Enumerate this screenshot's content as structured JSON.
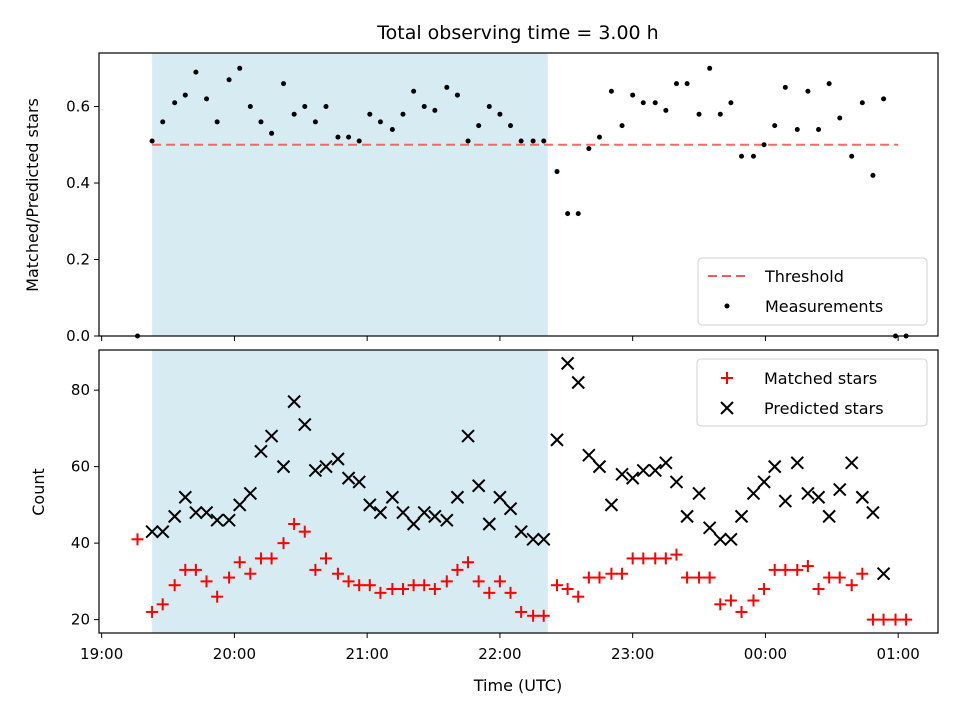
{
  "title": "Total observing time = 3.00 h",
  "colors": {
    "shade": "#add8e6",
    "threshold": "#ff5555",
    "matched": "#ff0000",
    "predicted": "#000000",
    "points": "#000000"
  },
  "chart_data": [
    {
      "type": "scatter",
      "position": "top",
      "ylabel": "Matched/Predicted stars",
      "xlabel": "",
      "ylim": [
        0,
        0.74
      ],
      "yticks": [
        "0.0",
        "0.2",
        "0.4",
        "0.6"
      ],
      "ytick_values": [
        0,
        0.2,
        0.4,
        0.6
      ],
      "shaded_region": {
        "start_hour": 19.38,
        "end_hour": 22.36
      },
      "threshold": 0.5,
      "legend": {
        "placement": "lower right",
        "items": [
          "Threshold",
          "Measurements"
        ]
      },
      "series": [
        {
          "name": "Measurements",
          "x_hours": [
            19.27,
            19.38,
            19.46,
            19.55,
            19.63,
            19.71,
            19.79,
            19.87,
            19.96,
            20.04,
            20.12,
            20.2,
            20.28,
            20.37,
            20.45,
            20.53,
            20.61,
            20.69,
            20.78,
            20.86,
            20.94,
            21.02,
            21.1,
            21.19,
            21.27,
            21.35,
            21.43,
            21.51,
            21.6,
            21.68,
            21.76,
            21.84,
            21.92,
            22.0,
            22.08,
            22.16,
            22.25,
            22.33,
            22.43,
            22.51,
            22.59,
            22.67,
            22.75,
            22.84,
            22.92,
            23.0,
            23.08,
            23.17,
            23.25,
            23.33,
            23.41,
            23.5,
            23.58,
            23.66,
            23.74,
            23.82,
            23.91,
            23.99,
            24.07,
            24.15,
            24.24,
            24.32,
            24.4,
            24.48,
            24.56,
            24.65,
            24.73,
            24.81,
            24.89,
            24.98,
            25.06
          ],
          "values": [
            0.0,
            0.51,
            0.56,
            0.61,
            0.63,
            0.69,
            0.62,
            0.56,
            0.67,
            0.7,
            0.6,
            0.56,
            0.53,
            0.66,
            0.58,
            0.6,
            0.56,
            0.6,
            0.52,
            0.52,
            0.51,
            0.58,
            0.56,
            0.54,
            0.58,
            0.64,
            0.6,
            0.59,
            0.65,
            0.63,
            0.51,
            0.55,
            0.6,
            0.58,
            0.55,
            0.51,
            0.51,
            0.51,
            0.43,
            0.32,
            0.32,
            0.49,
            0.52,
            0.64,
            0.55,
            0.63,
            0.61,
            0.61,
            0.59,
            0.66,
            0.66,
            0.58,
            0.7,
            0.58,
            0.61,
            0.47,
            0.47,
            0.5,
            0.55,
            0.65,
            0.54,
            0.64,
            0.54,
            0.66,
            0.57,
            0.47,
            0.61,
            0.42,
            0.62,
            0.0,
            0.0
          ]
        },
        {
          "name": "Threshold",
          "x_hours": [
            19.38,
            25.0
          ],
          "values": [
            0.5,
            0.5
          ]
        }
      ]
    },
    {
      "type": "scatter",
      "position": "bottom",
      "ylabel": "Count",
      "xlabel": "Time (UTC)",
      "ylim": [
        16.5,
        90.5
      ],
      "yticks": [
        "20",
        "40",
        "60",
        "80"
      ],
      "ytick_values": [
        20,
        40,
        60,
        80
      ],
      "xticks": [
        "19:00",
        "20:00",
        "21:00",
        "22:00",
        "23:00",
        "00:00",
        "01:00"
      ],
      "xlim_hours": [
        18.98,
        25.3
      ],
      "legend": {
        "placement": "upper right",
        "items": [
          "Matched stars",
          "Predicted stars"
        ]
      },
      "series": [
        {
          "name": "Matched stars",
          "x_hours": [
            19.27,
            19.38,
            19.46,
            19.55,
            19.63,
            19.71,
            19.79,
            19.87,
            19.96,
            20.04,
            20.12,
            20.2,
            20.28,
            20.37,
            20.45,
            20.53,
            20.61,
            20.69,
            20.78,
            20.86,
            20.94,
            21.02,
            21.1,
            21.19,
            21.27,
            21.35,
            21.43,
            21.51,
            21.6,
            21.68,
            21.76,
            21.84,
            21.92,
            22.0,
            22.08,
            22.16,
            22.25,
            22.33,
            22.43,
            22.51,
            22.59,
            22.67,
            22.75,
            22.84,
            22.92,
            23.0,
            23.08,
            23.17,
            23.25,
            23.33,
            23.41,
            23.5,
            23.58,
            23.66,
            23.74,
            23.82,
            23.91,
            23.99,
            24.07,
            24.15,
            24.24,
            24.32,
            24.4,
            24.48,
            24.56,
            24.65,
            24.73,
            24.81,
            24.89,
            24.98,
            25.06
          ],
          "values": [
            41,
            22,
            24,
            29,
            33,
            33,
            30,
            26,
            31,
            35,
            32,
            36,
            36,
            40,
            45,
            43,
            33,
            36,
            32,
            30,
            29,
            29,
            27,
            28,
            28,
            29,
            29,
            28,
            30,
            33,
            35,
            30,
            27,
            30,
            27,
            22,
            21,
            21,
            29,
            28,
            26,
            31,
            31,
            32,
            32,
            36,
            36,
            36,
            36,
            37,
            31,
            31,
            31,
            24,
            25,
            22,
            25,
            28,
            33,
            33,
            33,
            34,
            28,
            31,
            31,
            29,
            32,
            20,
            20,
            20,
            20
          ]
        },
        {
          "name": "Predicted stars",
          "x_hours": [
            19.38,
            19.46,
            19.55,
            19.63,
            19.71,
            19.79,
            19.87,
            19.96,
            20.04,
            20.12,
            20.2,
            20.28,
            20.37,
            20.45,
            20.53,
            20.61,
            20.69,
            20.78,
            20.86,
            20.94,
            21.02,
            21.1,
            21.19,
            21.27,
            21.35,
            21.43,
            21.51,
            21.6,
            21.68,
            21.76,
            21.84,
            21.92,
            22.0,
            22.08,
            22.16,
            22.25,
            22.33,
            22.43,
            22.51,
            22.59,
            22.67,
            22.75,
            22.84,
            22.92,
            23.0,
            23.08,
            23.17,
            23.25,
            23.33,
            23.41,
            23.5,
            23.58,
            23.66,
            23.74,
            23.82,
            23.91,
            23.99,
            24.07,
            24.15,
            24.24,
            24.32,
            24.4,
            24.48,
            24.56,
            24.65,
            24.73,
            24.81,
            24.89
          ],
          "values": [
            43,
            43,
            47,
            52,
            48,
            48,
            46,
            46,
            50,
            53,
            64,
            68,
            60,
            77,
            71,
            59,
            60,
            62,
            57,
            56,
            50,
            48,
            52,
            48,
            45,
            48,
            47,
            46,
            52,
            68,
            55,
            45,
            52,
            49,
            43,
            41,
            41,
            67,
            87,
            82,
            63,
            60,
            50,
            58,
            57,
            59,
            59,
            61,
            56,
            47,
            53,
            44,
            41,
            41,
            47,
            53,
            56,
            60,
            51,
            61,
            53,
            52,
            47,
            54,
            61,
            52,
            48,
            32
          ]
        }
      ]
    }
  ]
}
